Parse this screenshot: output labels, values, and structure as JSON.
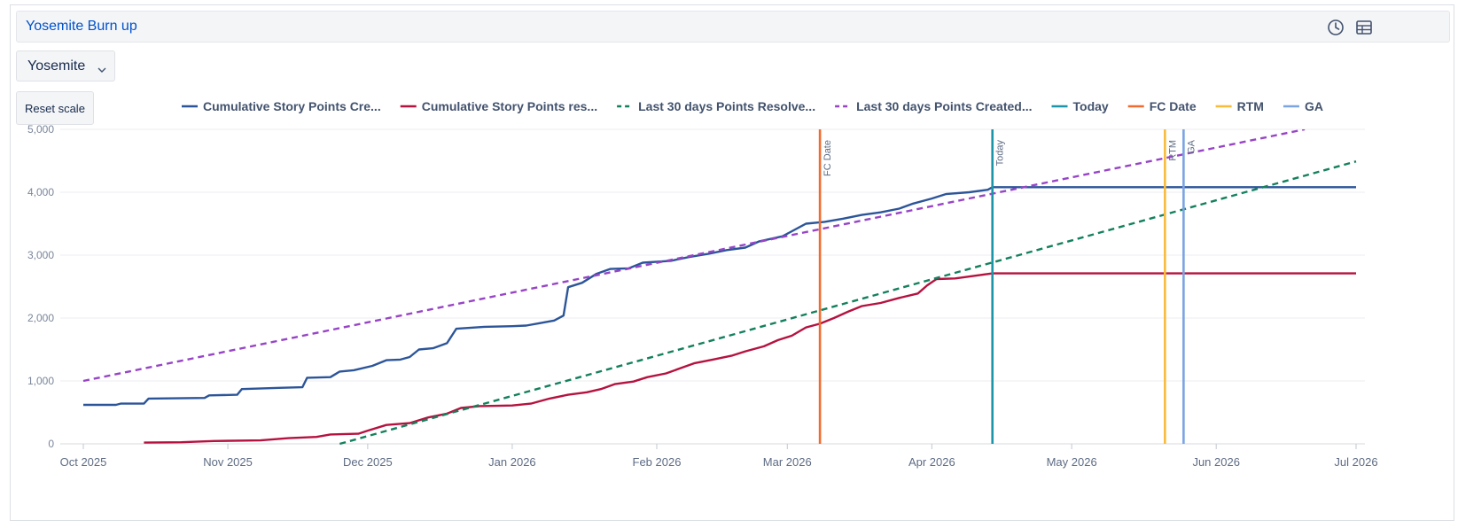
{
  "header": {
    "title": "Yosemite Burn up",
    "icons": [
      "clock-icon",
      "table-icon"
    ]
  },
  "filter": {
    "selected": "Yosemite"
  },
  "controls": {
    "reset_label": "Reset scale"
  },
  "chart_data": {
    "type": "line",
    "title": "",
    "xlabel": "",
    "ylabel": "",
    "ylim": [
      0,
      5000
    ],
    "xlim": [
      "2025-10-01",
      "2026-07-01"
    ],
    "y_ticks": [
      "0",
      "1,000",
      "2,000",
      "3,000",
      "4,000",
      "5,000"
    ],
    "x_ticks": [
      {
        "label": "Oct 2025",
        "date": "2025-10-01"
      },
      {
        "label": "Nov 2025",
        "date": "2025-11-01"
      },
      {
        "label": "Dec 2025",
        "date": "2025-12-01"
      },
      {
        "label": "Jan 2026",
        "date": "2026-01-01"
      },
      {
        "label": "Feb 2026",
        "date": "2026-02-01"
      },
      {
        "label": "Mar 2026",
        "date": "2026-03-01"
      },
      {
        "label": "Apr 2026",
        "date": "2026-04-01"
      },
      {
        "label": "May 2026",
        "date": "2026-05-01"
      },
      {
        "label": "Jun 2026",
        "date": "2026-06-01"
      },
      {
        "label": "Jul 2026",
        "date": "2026-07-01"
      }
    ],
    "grid": true,
    "legend_position": "top",
    "series": [
      {
        "name": "Cumulative Story Points Cre...",
        "color": "#2c5599",
        "style": "solid",
        "points": [
          [
            "2025-10-01",
            620
          ],
          [
            "2025-10-08",
            620
          ],
          [
            "2025-10-09",
            640
          ],
          [
            "2025-10-14",
            640
          ],
          [
            "2025-10-15",
            720
          ],
          [
            "2025-10-27",
            730
          ],
          [
            "2025-10-28",
            770
          ],
          [
            "2025-11-03",
            780
          ],
          [
            "2025-11-04",
            870
          ],
          [
            "2025-11-12",
            890
          ],
          [
            "2025-11-17",
            900
          ],
          [
            "2025-11-18",
            1050
          ],
          [
            "2025-11-23",
            1060
          ],
          [
            "2025-11-25",
            1150
          ],
          [
            "2025-11-28",
            1170
          ],
          [
            "2025-12-02",
            1240
          ],
          [
            "2025-12-05",
            1330
          ],
          [
            "2025-12-08",
            1340
          ],
          [
            "2025-12-10",
            1380
          ],
          [
            "2025-12-12",
            1500
          ],
          [
            "2025-12-15",
            1520
          ],
          [
            "2025-12-18",
            1600
          ],
          [
            "2025-12-20",
            1830
          ],
          [
            "2025-12-26",
            1860
          ],
          [
            "2026-01-01",
            1870
          ],
          [
            "2026-01-04",
            1880
          ],
          [
            "2026-01-07",
            1920
          ],
          [
            "2026-01-10",
            1960
          ],
          [
            "2026-01-12",
            2040
          ],
          [
            "2026-01-13",
            2490
          ],
          [
            "2026-01-16",
            2560
          ],
          [
            "2026-01-19",
            2700
          ],
          [
            "2026-01-22",
            2780
          ],
          [
            "2026-01-26",
            2790
          ],
          [
            "2026-01-29",
            2880
          ],
          [
            "2026-02-04",
            2910
          ],
          [
            "2026-02-08",
            2970
          ],
          [
            "2026-02-12",
            3020
          ],
          [
            "2026-02-16",
            3080
          ],
          [
            "2026-02-20",
            3120
          ],
          [
            "2026-02-23",
            3220
          ],
          [
            "2026-02-28",
            3300
          ],
          [
            "2026-03-02",
            3380
          ],
          [
            "2026-03-05",
            3500
          ],
          [
            "2026-03-09",
            3530
          ],
          [
            "2026-03-13",
            3580
          ],
          [
            "2026-03-17",
            3640
          ],
          [
            "2026-03-21",
            3680
          ],
          [
            "2026-03-25",
            3740
          ],
          [
            "2026-03-28",
            3820
          ],
          [
            "2026-04-01",
            3900
          ],
          [
            "2026-04-04",
            3970
          ],
          [
            "2026-04-09",
            4000
          ],
          [
            "2026-04-13",
            4040
          ],
          [
            "2026-04-14",
            4080
          ],
          [
            "2026-07-01",
            4080
          ]
        ]
      },
      {
        "name": "Cumulative Story Points res...",
        "color": "#b5123f",
        "style": "solid",
        "points": [
          [
            "2025-10-14",
            20
          ],
          [
            "2025-10-22",
            25
          ],
          [
            "2025-10-29",
            45
          ],
          [
            "2025-11-08",
            55
          ],
          [
            "2025-11-14",
            90
          ],
          [
            "2025-11-20",
            110
          ],
          [
            "2025-11-23",
            150
          ],
          [
            "2025-11-29",
            160
          ],
          [
            "2025-12-01",
            210
          ],
          [
            "2025-12-05",
            300
          ],
          [
            "2025-12-10",
            330
          ],
          [
            "2025-12-14",
            420
          ],
          [
            "2025-12-18",
            480
          ],
          [
            "2025-12-21",
            570
          ],
          [
            "2025-12-25",
            600
          ],
          [
            "2026-01-01",
            610
          ],
          [
            "2026-01-05",
            640
          ],
          [
            "2026-01-09",
            720
          ],
          [
            "2026-01-13",
            780
          ],
          [
            "2026-01-17",
            820
          ],
          [
            "2026-01-20",
            870
          ],
          [
            "2026-01-23",
            950
          ],
          [
            "2026-01-27",
            990
          ],
          [
            "2026-01-30",
            1060
          ],
          [
            "2026-02-03",
            1120
          ],
          [
            "2026-02-06",
            1200
          ],
          [
            "2026-02-09",
            1280
          ],
          [
            "2026-02-13",
            1340
          ],
          [
            "2026-02-17",
            1400
          ],
          [
            "2026-02-20",
            1470
          ],
          [
            "2026-02-24",
            1550
          ],
          [
            "2026-02-27",
            1650
          ],
          [
            "2026-03-02",
            1720
          ],
          [
            "2026-03-05",
            1850
          ],
          [
            "2026-03-08",
            1910
          ],
          [
            "2026-03-11",
            2000
          ],
          [
            "2026-03-14",
            2100
          ],
          [
            "2026-03-17",
            2190
          ],
          [
            "2026-03-21",
            2240
          ],
          [
            "2026-03-25",
            2320
          ],
          [
            "2026-03-29",
            2390
          ],
          [
            "2026-03-31",
            2520
          ],
          [
            "2026-04-02",
            2620
          ],
          [
            "2026-04-06",
            2630
          ],
          [
            "2026-04-10",
            2670
          ],
          [
            "2026-04-14",
            2710
          ],
          [
            "2026-07-01",
            2710
          ]
        ]
      },
      {
        "name": "Last 30 days Points Resolve...",
        "color": "#14805e",
        "style": "dashed",
        "points": [
          [
            "2025-11-25",
            0
          ],
          [
            "2026-07-01",
            4490
          ]
        ]
      },
      {
        "name": "Last 30 days Points Created...",
        "color": "#9745c6",
        "style": "dashed",
        "points": [
          [
            "2025-10-01",
            1000
          ],
          [
            "2026-06-20",
            5000
          ]
        ]
      }
    ],
    "markers": [
      {
        "name": "Today",
        "date": "2026-04-14",
        "color": "#1c95a8",
        "label": "Today"
      },
      {
        "name": "FC Date",
        "date": "2026-03-08",
        "color": "#f26b2e",
        "label": "FC Date"
      },
      {
        "name": "RTM",
        "date": "2026-05-21",
        "color": "#f8bb3c",
        "label": "RTM"
      },
      {
        "name": "GA",
        "date": "2026-05-25",
        "color": "#7ba4e3",
        "label": "GA"
      }
    ],
    "legend": [
      {
        "name": "Cumulative Story Points Cre...",
        "color": "#2c5599",
        "style": "solid"
      },
      {
        "name": "Cumulative Story Points res...",
        "color": "#b5123f",
        "style": "solid"
      },
      {
        "name": "Last 30 days Points Resolve...",
        "color": "#14805e",
        "style": "dashed"
      },
      {
        "name": "Last 30 days Points Created...",
        "color": "#9745c6",
        "style": "dashed"
      },
      {
        "name": "Today",
        "color": "#1c95a8",
        "style": "solid"
      },
      {
        "name": "FC Date",
        "color": "#f26b2e",
        "style": "solid"
      },
      {
        "name": "RTM",
        "color": "#f8bb3c",
        "style": "solid"
      },
      {
        "name": "GA",
        "color": "#7ba4e3",
        "style": "solid"
      }
    ]
  }
}
